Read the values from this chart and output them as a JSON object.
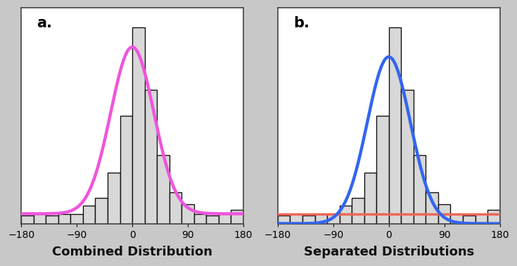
{
  "title_a": "a.",
  "title_b": "b.",
  "xlabel_a": "Combined Distribution",
  "xlabel_b": "Separated Distributions",
  "xlim": [
    -180,
    180
  ],
  "xticks": [
    -180,
    -90,
    0,
    90,
    180
  ],
  "background_color": "#c8c8c8",
  "panel_bg": "#ffffff",
  "hist_face_color": "#d8d8d8",
  "hist_edge_color": "#111111",
  "curve_pink": "#ee55dd",
  "curve_blue": "#3366ee",
  "curve_red": "#ee6655",
  "bin_edges": [
    -180,
    -160,
    -140,
    -120,
    -100,
    -80,
    -60,
    -40,
    -20,
    0,
    20,
    40,
    60,
    80,
    100,
    120,
    140,
    160,
    180
  ],
  "bar_heights": [
    4,
    5,
    4,
    5,
    5,
    9,
    13,
    26,
    55,
    100,
    68,
    35,
    16,
    10,
    5,
    4,
    5,
    7
  ],
  "gaussian_mu": 0,
  "gaussian_sigma": 35,
  "gaussian_amplitude": 85,
  "uniform_level": 5,
  "label_fontsize": 13,
  "title_fontsize": 15,
  "curve_lw": 3.2,
  "red_lw": 2.5,
  "fig_width": 7.35,
  "fig_height": 3.79
}
